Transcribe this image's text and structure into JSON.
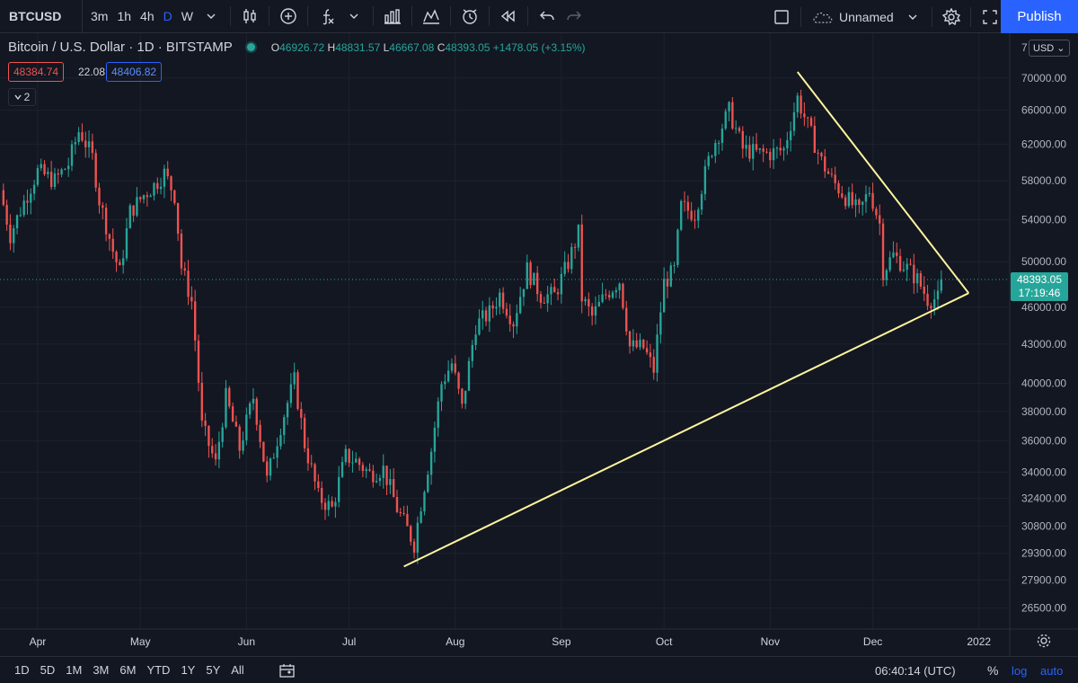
{
  "toolbar": {
    "symbol": "BTCUSD",
    "intervals": [
      "3m",
      "1h",
      "4h",
      "D",
      "W"
    ],
    "active_interval": "D",
    "layout_name": "Unnamed",
    "publish_label": "Publish"
  },
  "legend": {
    "title": "Bitcoin / U.S. Dollar · 1D · BITSTAMP",
    "open_label": "O",
    "open": "46926.72",
    "high_label": "H",
    "high": "48831.57",
    "low_label": "L",
    "low": "46667.08",
    "close_label": "C",
    "close": "48393.05",
    "change": "+1478.05 (+3.15%)",
    "bid": "48384.74",
    "spread": "22.08",
    "ask": "48406.82",
    "indicators_count": "2"
  },
  "price_axis": {
    "currency": "USD",
    "top_label": "7",
    "current_price": "48393.05",
    "countdown": "17:19:46"
  },
  "bottom": {
    "ranges": [
      "1D",
      "5D",
      "1M",
      "3M",
      "6M",
      "YTD",
      "1Y",
      "5Y",
      "All"
    ],
    "clock": "06:40:14 (UTC)",
    "percent_label": "%",
    "log_label": "log",
    "auto_label": "auto"
  },
  "colors": {
    "background": "#131722",
    "up": "#26a69a",
    "down": "#ef5350",
    "trendline": "#fff59d",
    "grid": "#1e222d"
  },
  "chart_data": {
    "type": "candlestick",
    "scale": "log",
    "ylim": [
      25500,
      76000
    ],
    "y_ticks": [
      26500,
      27900,
      29300,
      30800,
      32400,
      34000,
      36000,
      38000,
      40000,
      43000,
      46000,
      50000,
      54000,
      58000,
      62000,
      66000,
      70000
    ],
    "x_ticks": [
      {
        "date": "2021-04-01",
        "label": "Apr"
      },
      {
        "date": "2021-05-01",
        "label": "May"
      },
      {
        "date": "2021-06-01",
        "label": "Jun"
      },
      {
        "date": "2021-07-01",
        "label": "Jul"
      },
      {
        "date": "2021-08-01",
        "label": "Aug"
      },
      {
        "date": "2021-09-01",
        "label": "Sep"
      },
      {
        "date": "2021-10-01",
        "label": "Oct"
      },
      {
        "date": "2021-11-01",
        "label": "Nov"
      },
      {
        "date": "2021-12-01",
        "label": "Dec"
      },
      {
        "date": "2022-01-01",
        "label": "2022"
      }
    ],
    "xlim": [
      "2021-03-21",
      "2022-01-10"
    ],
    "grid": true,
    "trendlines": [
      {
        "from": {
          "date": "2021-07-17",
          "price": 28600
        },
        "to": {
          "date": "2021-12-29",
          "price": 47200
        }
      },
      {
        "from": {
          "date": "2021-11-09",
          "price": 70800
        },
        "to": {
          "date": "2021-12-29",
          "price": 47200
        }
      }
    ],
    "closes": [
      {
        "date": "2021-03-21",
        "close": 57000
      },
      {
        "date": "2021-03-24",
        "close": 52500
      },
      {
        "date": "2021-03-28",
        "close": 55800
      },
      {
        "date": "2021-04-01",
        "close": 59000
      },
      {
        "date": "2021-04-06",
        "close": 58000
      },
      {
        "date": "2021-04-10",
        "close": 59800
      },
      {
        "date": "2021-04-13",
        "close": 63500
      },
      {
        "date": "2021-04-14",
        "close": 63000
      },
      {
        "date": "2021-04-17",
        "close": 60500
      },
      {
        "date": "2021-04-19",
        "close": 56000
      },
      {
        "date": "2021-04-23",
        "close": 51000
      },
      {
        "date": "2021-04-25",
        "close": 49000
      },
      {
        "date": "2021-04-28",
        "close": 54800
      },
      {
        "date": "2021-05-02",
        "close": 56500
      },
      {
        "date": "2021-05-05",
        "close": 57500
      },
      {
        "date": "2021-05-08",
        "close": 58800
      },
      {
        "date": "2021-05-11",
        "close": 56500
      },
      {
        "date": "2021-05-13",
        "close": 49500
      },
      {
        "date": "2021-05-16",
        "close": 46500
      },
      {
        "date": "2021-05-19",
        "close": 37000
      },
      {
        "date": "2021-05-23",
        "close": 34500
      },
      {
        "date": "2021-05-26",
        "close": 39000
      },
      {
        "date": "2021-05-30",
        "close": 35500
      },
      {
        "date": "2021-06-03",
        "close": 39000
      },
      {
        "date": "2021-06-07",
        "close": 33500
      },
      {
        "date": "2021-06-11",
        "close": 37000
      },
      {
        "date": "2021-06-15",
        "close": 40200
      },
      {
        "date": "2021-06-18",
        "close": 35800
      },
      {
        "date": "2021-06-22",
        "close": 32500
      },
      {
        "date": "2021-06-26",
        "close": 31800
      },
      {
        "date": "2021-06-30",
        "close": 35000
      },
      {
        "date": "2021-07-03",
        "close": 34700
      },
      {
        "date": "2021-07-07",
        "close": 33900
      },
      {
        "date": "2021-07-11",
        "close": 34200
      },
      {
        "date": "2021-07-15",
        "close": 31800
      },
      {
        "date": "2021-07-20",
        "close": 29800
      },
      {
        "date": "2021-07-22",
        "close": 32100
      },
      {
        "date": "2021-07-25",
        "close": 35400
      },
      {
        "date": "2021-07-28",
        "close": 40000
      },
      {
        "date": "2021-07-31",
        "close": 41500
      },
      {
        "date": "2021-08-03",
        "close": 38200
      },
      {
        "date": "2021-08-07",
        "close": 44500
      },
      {
        "date": "2021-08-11",
        "close": 45500
      },
      {
        "date": "2021-08-14",
        "close": 47100
      },
      {
        "date": "2021-08-18",
        "close": 44800
      },
      {
        "date": "2021-08-22",
        "close": 49300
      },
      {
        "date": "2021-08-26",
        "close": 47000
      },
      {
        "date": "2021-08-30",
        "close": 47000
      },
      {
        "date": "2021-09-03",
        "close": 49900
      },
      {
        "date": "2021-09-06",
        "close": 52700
      },
      {
        "date": "2021-09-07",
        "close": 46800
      },
      {
        "date": "2021-09-10",
        "close": 45200
      },
      {
        "date": "2021-09-14",
        "close": 47100
      },
      {
        "date": "2021-09-18",
        "close": 48300
      },
      {
        "date": "2021-09-21",
        "close": 42800
      },
      {
        "date": "2021-09-25",
        "close": 42700
      },
      {
        "date": "2021-09-28",
        "close": 41000
      },
      {
        "date": "2021-10-01",
        "close": 48100
      },
      {
        "date": "2021-10-04",
        "close": 49200
      },
      {
        "date": "2021-10-06",
        "close": 55300
      },
      {
        "date": "2021-10-10",
        "close": 54600
      },
      {
        "date": "2021-10-15",
        "close": 61500
      },
      {
        "date": "2021-10-20",
        "close": 65900
      },
      {
        "date": "2021-10-24",
        "close": 61500
      },
      {
        "date": "2021-10-28",
        "close": 61000
      },
      {
        "date": "2021-11-01",
        "close": 61000
      },
      {
        "date": "2021-11-05",
        "close": 61400
      },
      {
        "date": "2021-11-09",
        "close": 67500
      },
      {
        "date": "2021-11-12",
        "close": 64100
      },
      {
        "date": "2021-11-16",
        "close": 60100
      },
      {
        "date": "2021-11-19",
        "close": 58100
      },
      {
        "date": "2021-11-23",
        "close": 56300
      },
      {
        "date": "2021-11-27",
        "close": 54700
      },
      {
        "date": "2021-11-30",
        "close": 57000
      },
      {
        "date": "2021-12-03",
        "close": 53600
      },
      {
        "date": "2021-12-04",
        "close": 49200
      },
      {
        "date": "2021-12-07",
        "close": 50600
      },
      {
        "date": "2021-12-11",
        "close": 49400
      },
      {
        "date": "2021-12-14",
        "close": 48400
      },
      {
        "date": "2021-12-17",
        "close": 46700
      },
      {
        "date": "2021-12-20",
        "close": 46700
      },
      {
        "date": "2021-12-21",
        "close": 48393
      }
    ]
  }
}
